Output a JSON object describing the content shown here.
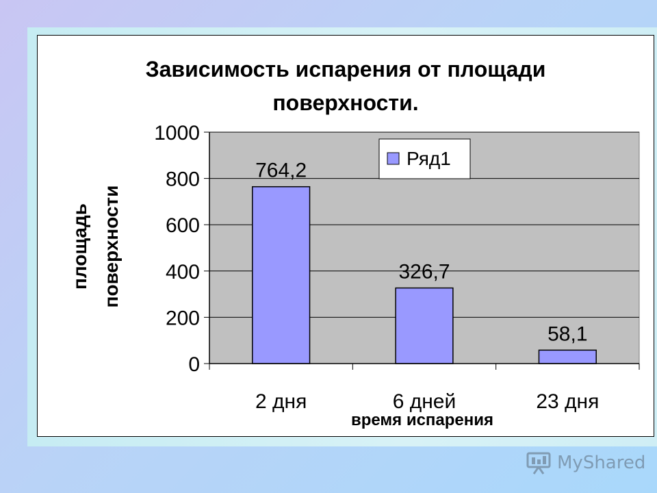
{
  "chart_data": {
    "type": "bar",
    "title_lines": [
      "Зависимость испарения от площади",
      "поверхности."
    ],
    "categories": [
      "2 дня",
      "6 дней",
      "23 дня"
    ],
    "series": [
      {
        "name": "Ряд1",
        "values": [
          764.2,
          326.7,
          58.1
        ],
        "data_labels": [
          "764,2",
          "326,7",
          "58,1"
        ],
        "color": "#9999ff"
      }
    ],
    "xlabel": "время испарения",
    "ylabel_lines": [
      "площадь",
      "поверхности"
    ],
    "ylim": [
      0,
      1000
    ],
    "yticks": [
      0,
      200,
      400,
      600,
      800,
      1000
    ],
    "ytick_labels": [
      "0",
      "200",
      "400",
      "600",
      "800",
      "1000"
    ],
    "plot_background": "#c0c0c0",
    "grid": true,
    "legend": "top-right"
  },
  "watermark": {
    "text": "MyShared",
    "icon": "presentation-icon"
  }
}
